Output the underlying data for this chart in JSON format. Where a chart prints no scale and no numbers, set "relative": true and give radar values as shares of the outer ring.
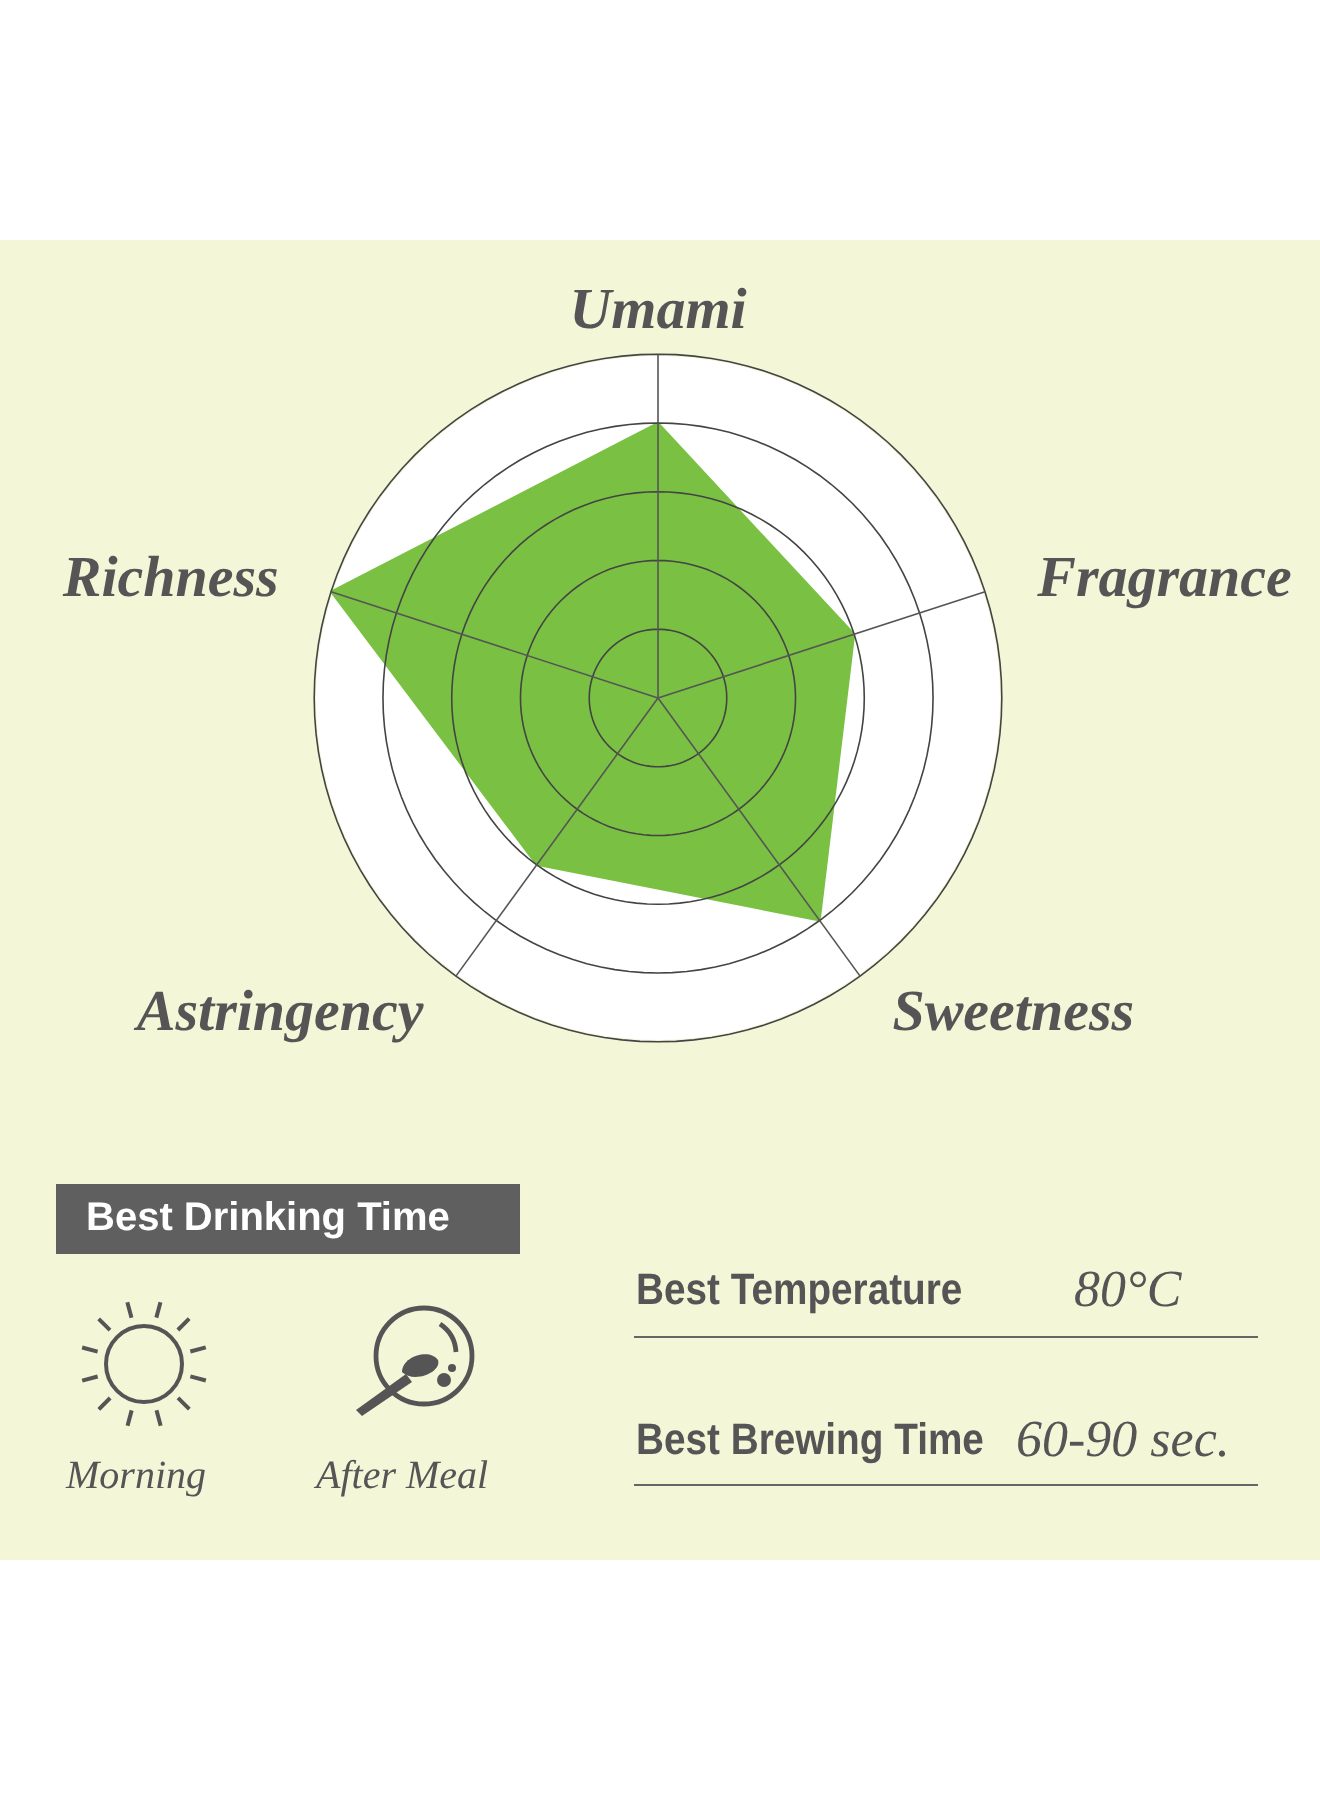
{
  "chart_data": {
    "type": "radar",
    "relative": true,
    "grid": true,
    "categories": [
      "Umami",
      "Fragrance",
      "Sweetness",
      "Astringency",
      "Richness"
    ],
    "series": [
      {
        "color": "#7ac143",
        "values": [
          0.8,
          0.6,
          0.8,
          0.6,
          1.0
        ]
      }
    ],
    "annotations": [
      "Best Drinking Time",
      "Morning",
      "After Meal",
      "Best Temperature",
      "80°C",
      "Best Brewing Time",
      "60-90 sec."
    ]
  }
}
